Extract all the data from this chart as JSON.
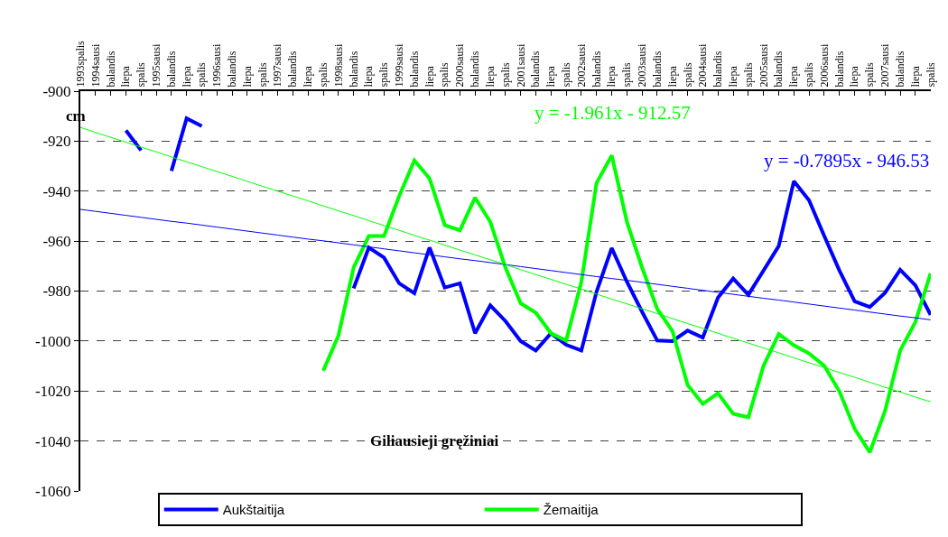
{
  "chart_data": {
    "type": "line",
    "title": "Giliausieji gręžiniai",
    "ylabel": "cm",
    "categories": [
      "1993spalis",
      "1994sausi",
      "balandis",
      "liepa",
      "spalis",
      "1995sausi",
      "balandis",
      "liepa",
      "spalis",
      "1996sausi",
      "balandis",
      "liepa",
      "spalis",
      "1997sausi",
      "balandis",
      "liepa",
      "spalis",
      "1998sausi",
      "balandis",
      "liepa",
      "spalis",
      "1999sausi",
      "balandis",
      "liepa",
      "spalis",
      "2000sausi",
      "balandis",
      "liepa",
      "spalis",
      "2001sausi",
      "balandis",
      "liepa",
      "spalis",
      "2002sausi",
      "balandis",
      "liepa",
      "spalis",
      "2003sausi",
      "balandis",
      "liepa",
      "spalis",
      "2004sausi",
      "balandis",
      "liepa",
      "spalis",
      "2005sausi",
      "balandis",
      "liepa",
      "spalis",
      "2006sausi",
      "balandis",
      "liepa",
      "spalis",
      "2007sausi",
      "balandis",
      "liepa",
      "spalis"
    ],
    "series": [
      {
        "name": "Aukštaitija",
        "color": "#0000ff",
        "values": [
          null,
          null,
          null,
          -915.7,
          -923.7,
          null,
          -931.9,
          -910.9,
          -914,
          null,
          null,
          null,
          null,
          null,
          null,
          null,
          null,
          null,
          -978.9,
          -962.6,
          -966.6,
          -976.9,
          -980.9,
          -962.6,
          -978.6,
          -976.9,
          -996.9,
          -985.7,
          -992,
          -1000,
          -1003.8,
          -996.9,
          -1001.5,
          -1003.8,
          -980.3,
          -962.8,
          -976.3,
          -988.3,
          -999.8,
          -1000,
          -995.8,
          -998.6,
          -982.6,
          -975,
          -981.5,
          -971.8,
          -962,
          -936,
          -943.7,
          -958,
          -971.8,
          -984.1,
          -986.4,
          -980.7,
          -971.5,
          -977.7,
          -989.5
        ]
      },
      {
        "name": "Žemaitija",
        "color": "#00ff00",
        "values": [
          null,
          null,
          null,
          null,
          null,
          null,
          null,
          null,
          null,
          null,
          null,
          null,
          null,
          null,
          null,
          null,
          -1011.9,
          -997.8,
          -970.6,
          -958,
          -958,
          -942,
          -927.7,
          -934.9,
          -953.6,
          -955.7,
          -942.6,
          -952.3,
          -970.6,
          -984.9,
          -988.7,
          -996.9,
          -999.8,
          -976.3,
          -936.8,
          -925.7,
          -952.3,
          -970.6,
          -987.2,
          -996,
          -1017.6,
          -1025.2,
          -1020.9,
          -1029.1,
          -1030.5,
          -1009.9,
          -997.2,
          -1001.7,
          -1005,
          -1009.9,
          -1020.2,
          -1035.1,
          -1044.5,
          -1028,
          -1003.8,
          -992.4,
          -972.9
        ]
      },
      {
        "type": "line",
        "color": "#0000ff",
        "values": [
          -947.3,
          -948.1,
          -948.9,
          -949.7,
          -950.5,
          -951.3,
          -952.1,
          -952.8,
          -953.6,
          -954.4,
          -955.2,
          -956.0,
          -956.8,
          -957.6,
          -958.4,
          -959.2,
          -959.9,
          -960.7,
          -961.5,
          -962.3,
          -963.1,
          -963.9,
          -964.7,
          -965.5,
          -966.3,
          -967.1,
          -967.8,
          -968.6,
          -969.4,
          -970.2,
          -971.0,
          -971.8,
          -972.6,
          -973.4,
          -974.2,
          -975.0,
          -975.7,
          -976.5,
          -977.3,
          -978.1,
          -978.9,
          -979.7,
          -980.5,
          -981.3,
          -982.1,
          -982.9,
          -983.6,
          -984.4,
          -985.2,
          -986.0,
          -986.8,
          -987.6,
          -988.4,
          -989.2,
          -990.0,
          -990.7,
          -991.5
        ]
      },
      {
        "type": "line",
        "color": "#00ff00",
        "values": [
          -914.5,
          -916.5,
          -918.5,
          -920.4,
          -922.4,
          -924.3,
          -926.3,
          -928.3,
          -930.2,
          -932.2,
          -934.1,
          -936.1,
          -938.1,
          -940.0,
          -942.0,
          -943.9,
          -945.9,
          -947.9,
          -949.8,
          -951.8,
          -953.8,
          -955.7,
          -957.7,
          -959.6,
          -961.6,
          -963.6,
          -965.5,
          -967.5,
          -969.4,
          -971.4,
          -973.4,
          -975.3,
          -977.3,
          -979.2,
          -981.2,
          -983.2,
          -985.1,
          -987.1,
          -989.0,
          -991.0,
          -993.0,
          -994.9,
          -996.9,
          -998.9,
          -1000.8,
          -1002.8,
          -1004.7,
          -1006.7,
          -1008.7,
          -1010.6,
          -1012.6,
          -1014.5,
          -1016.5,
          -1018.5,
          -1020.4,
          -1022.4,
          -1024.3
        ]
      }
    ],
    "annotations": [
      "y = -0.7895x - 946.53",
      "y = -1.961x - 912.57"
    ],
    "ylim": [
      -1060,
      -900
    ],
    "yticks": [
      -1060,
      -1040,
      -1020,
      -1000,
      -980,
      -960,
      -940,
      -920,
      -900
    ],
    "grid": "y",
    "legend": "bottom"
  }
}
